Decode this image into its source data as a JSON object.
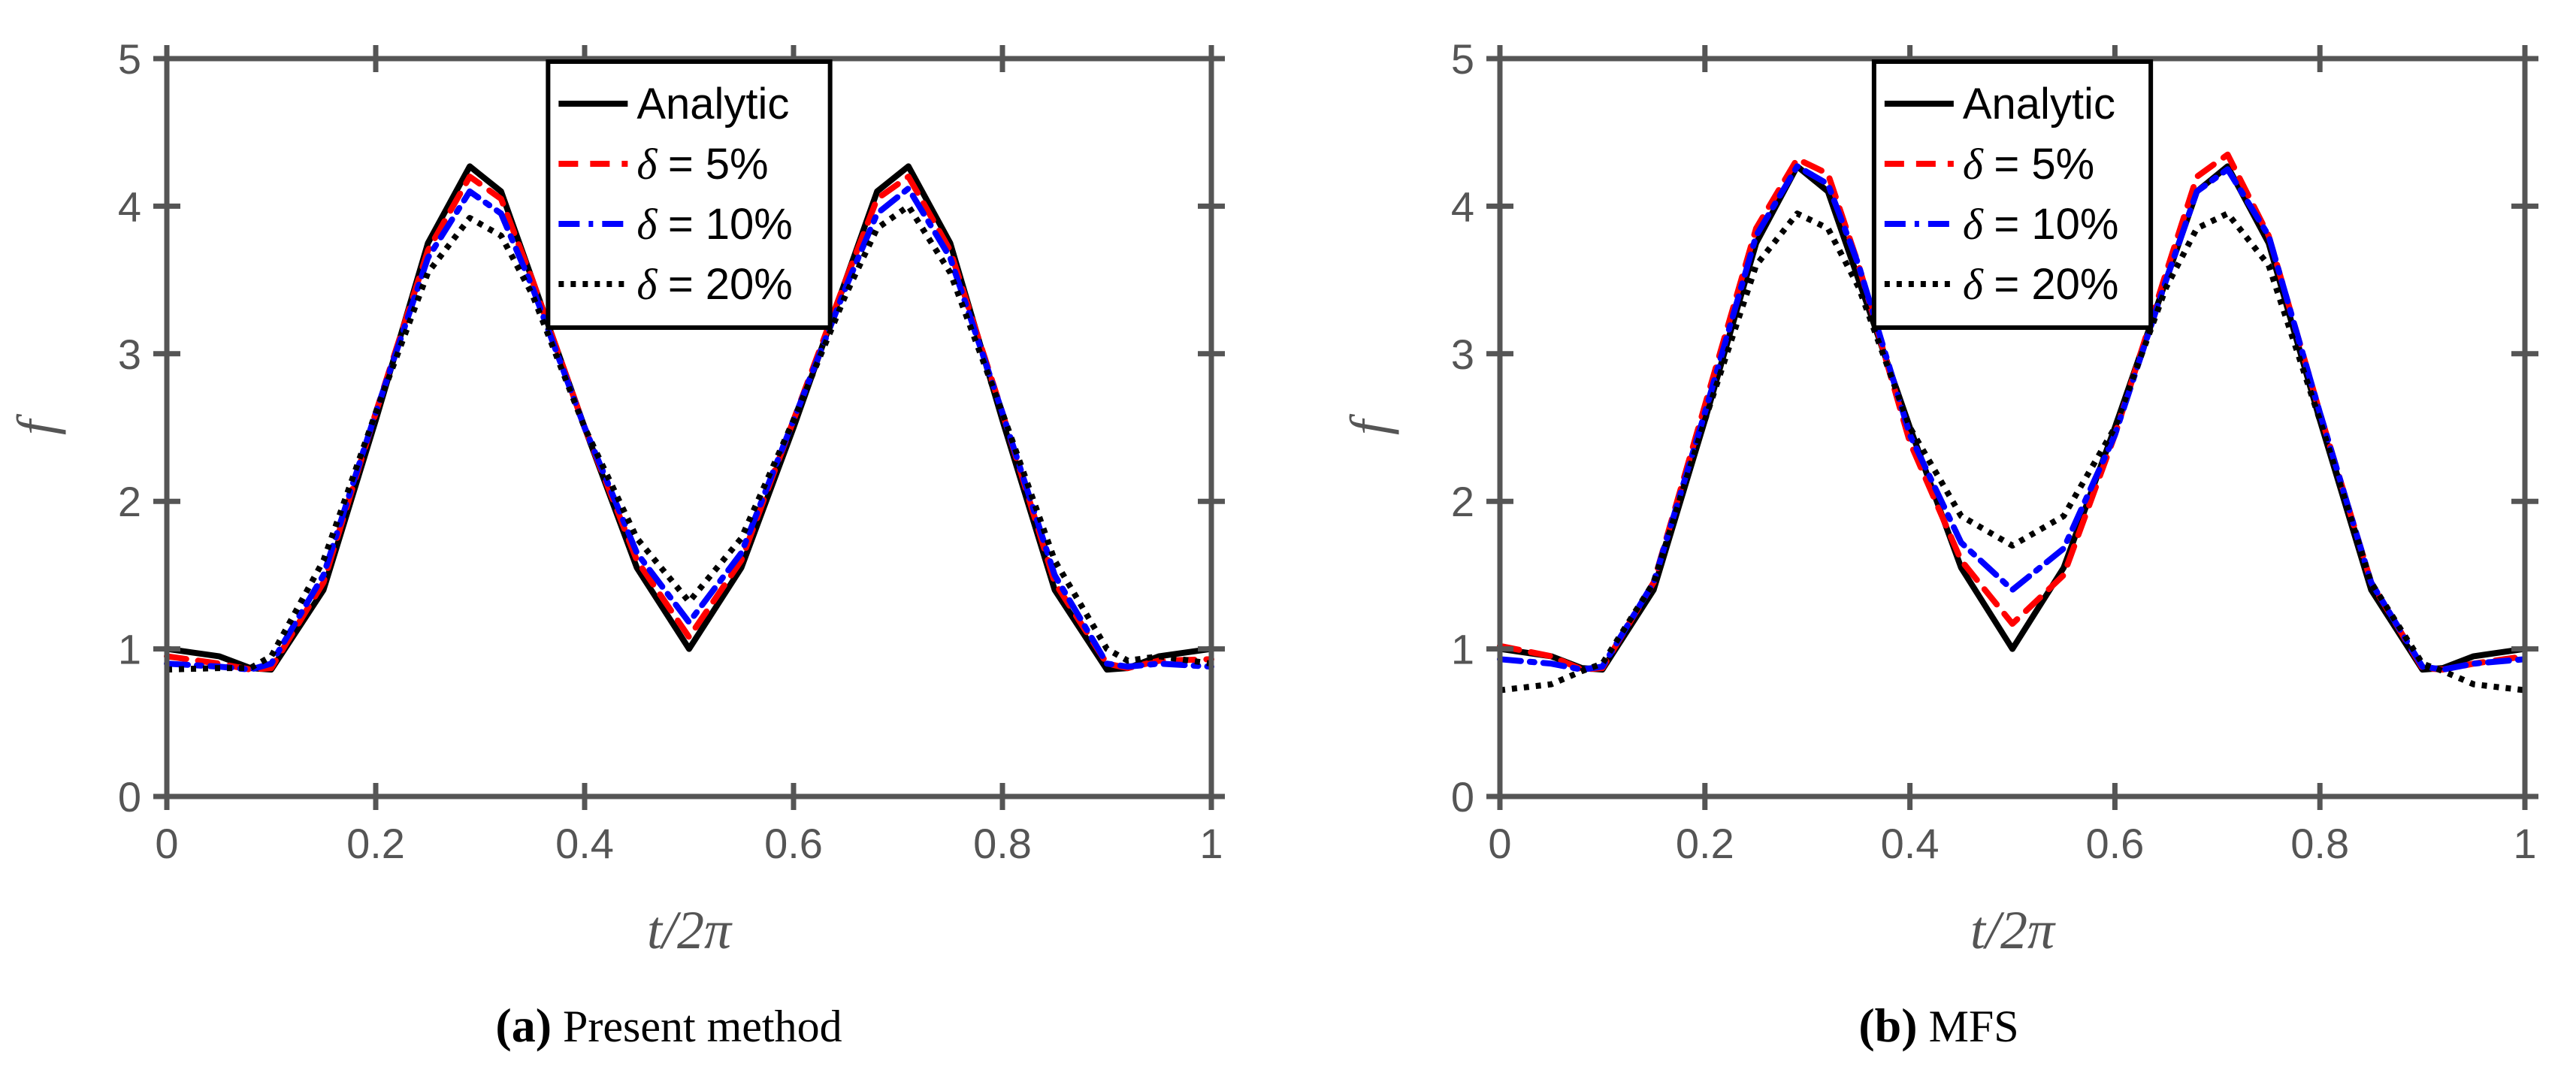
{
  "chart_data": [
    {
      "type": "line",
      "panel_label": "a",
      "title": "Present method",
      "xlabel": "t/2π",
      "ylabel": "f",
      "xlim": [
        0,
        1
      ],
      "ylim": [
        0,
        5
      ],
      "xticks": [
        "0",
        "0.2",
        "0.4",
        "0.6",
        "0.8",
        "1"
      ],
      "yticks": [
        "0",
        "1",
        "2",
        "3",
        "4",
        "5"
      ],
      "legend_position": "top-center",
      "x": [
        0,
        0.05,
        0.08,
        0.1,
        0.15,
        0.2,
        0.25,
        0.29,
        0.32,
        0.35,
        0.4,
        0.45,
        0.5,
        0.55,
        0.6,
        0.65,
        0.68,
        0.71,
        0.75,
        0.8,
        0.85,
        0.9,
        0.92,
        0.95,
        1.0
      ],
      "series": [
        {
          "name": "Analytic",
          "label_prefix": "",
          "color": "#000000",
          "style": "solid",
          "values": [
            1.0,
            0.95,
            0.87,
            0.86,
            1.4,
            2.55,
            3.75,
            4.27,
            4.1,
            3.5,
            2.5,
            1.55,
            1.0,
            1.55,
            2.5,
            3.5,
            4.1,
            4.27,
            3.75,
            2.55,
            1.4,
            0.86,
            0.87,
            0.95,
            1.0
          ]
        },
        {
          "name": "= 5%",
          "label_prefix": "δ",
          "color": "#ff0000",
          "style": "dashed",
          "values": [
            0.95,
            0.9,
            0.86,
            0.87,
            1.45,
            2.6,
            3.7,
            4.2,
            4.05,
            3.5,
            2.5,
            1.6,
            1.08,
            1.6,
            2.55,
            3.5,
            4.05,
            4.2,
            3.7,
            2.6,
            1.45,
            0.9,
            0.87,
            0.92,
            0.93
          ]
        },
        {
          "name": "= 10%",
          "label_prefix": "δ",
          "color": "#0000ff",
          "style": "dashdot",
          "values": [
            0.9,
            0.88,
            0.86,
            0.9,
            1.5,
            2.6,
            3.65,
            4.1,
            3.95,
            3.45,
            2.5,
            1.65,
            1.18,
            1.65,
            2.55,
            3.45,
            3.95,
            4.12,
            3.65,
            2.6,
            1.5,
            0.9,
            0.88,
            0.9,
            0.88
          ]
        },
        {
          "name": "= 20%",
          "label_prefix": "δ",
          "color": "#000000",
          "style": "dotted",
          "values": [
            0.86,
            0.87,
            0.87,
            0.95,
            1.6,
            2.6,
            3.55,
            3.92,
            3.8,
            3.4,
            2.5,
            1.75,
            1.32,
            1.75,
            2.55,
            3.4,
            3.85,
            4.0,
            3.55,
            2.6,
            1.6,
            1.0,
            0.92,
            0.95,
            0.9
          ]
        }
      ]
    },
    {
      "type": "line",
      "panel_label": "b",
      "title": "MFS",
      "xlabel": "t/2π",
      "ylabel": "f",
      "xlim": [
        0,
        1
      ],
      "ylim": [
        0,
        5
      ],
      "xticks": [
        "0",
        "0.2",
        "0.4",
        "0.6",
        "0.8",
        "1"
      ],
      "yticks": [
        "0",
        "1",
        "2",
        "3",
        "4",
        "5"
      ],
      "legend_position": "top-center",
      "x": [
        0,
        0.05,
        0.08,
        0.1,
        0.15,
        0.2,
        0.25,
        0.29,
        0.32,
        0.35,
        0.4,
        0.45,
        0.5,
        0.55,
        0.6,
        0.65,
        0.68,
        0.71,
        0.75,
        0.8,
        0.85,
        0.9,
        0.92,
        0.95,
        1.0
      ],
      "series": [
        {
          "name": "Analytic",
          "label_prefix": "",
          "color": "#000000",
          "style": "solid",
          "values": [
            1.0,
            0.95,
            0.87,
            0.86,
            1.4,
            2.55,
            3.75,
            4.27,
            4.1,
            3.5,
            2.5,
            1.55,
            1.0,
            1.55,
            2.5,
            3.5,
            4.1,
            4.27,
            3.75,
            2.55,
            1.4,
            0.86,
            0.87,
            0.95,
            1.0
          ]
        },
        {
          "name": "= 5%",
          "label_prefix": "δ",
          "color": "#ff0000",
          "style": "dashed",
          "values": [
            1.02,
            0.95,
            0.86,
            0.87,
            1.45,
            2.65,
            3.85,
            4.32,
            4.22,
            3.6,
            2.4,
            1.6,
            1.17,
            1.5,
            2.45,
            3.55,
            4.2,
            4.35,
            3.8,
            2.6,
            1.45,
            0.87,
            0.86,
            0.9,
            0.95
          ]
        },
        {
          "name": "= 10%",
          "label_prefix": "δ",
          "color": "#0000ff",
          "style": "dashdot",
          "values": [
            0.93,
            0.9,
            0.86,
            0.88,
            1.45,
            2.6,
            3.8,
            4.27,
            4.15,
            3.6,
            2.45,
            1.72,
            1.4,
            1.68,
            2.45,
            3.5,
            4.1,
            4.25,
            3.8,
            2.6,
            1.45,
            0.88,
            0.86,
            0.9,
            0.93
          ]
        },
        {
          "name": "= 20%",
          "label_prefix": "δ",
          "color": "#000000",
          "style": "dotted",
          "values": [
            0.72,
            0.76,
            0.85,
            0.9,
            1.45,
            2.55,
            3.6,
            3.95,
            3.85,
            3.45,
            2.5,
            1.9,
            1.7,
            1.9,
            2.5,
            3.45,
            3.85,
            3.95,
            3.6,
            2.55,
            1.45,
            0.9,
            0.85,
            0.76,
            0.72
          ]
        }
      ]
    }
  ]
}
